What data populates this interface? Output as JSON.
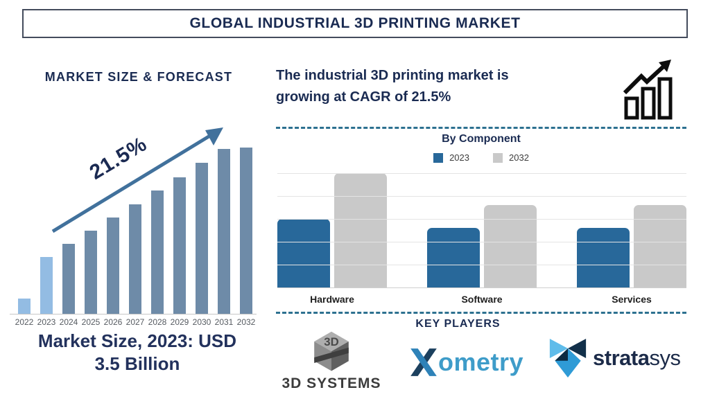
{
  "header": {
    "title": "GLOBAL INDUSTRIAL 3D PRINTING MARKET"
  },
  "forecast": {
    "heading": "MARKET SIZE & FORECAST",
    "growth_annotation": "21.5%",
    "caption_line1": "Market Size, 2023: USD",
    "caption_line2": "3.5 Billion"
  },
  "cagr": {
    "line1": "The industrial 3D printing market is",
    "line2": "growing at CAGR of 21.5%"
  },
  "key_players": {
    "heading": "KEY PLAYERS",
    "players": [
      {
        "name": "3D Systems",
        "mark_text": "3D",
        "wordmark": "3D SYSTEMS"
      },
      {
        "name": "Xometry",
        "wordmark_x": "X",
        "wordmark_rest": "ometry"
      },
      {
        "name": "Stratasys",
        "wordmark_bold": "strata",
        "wordmark_light": "sys"
      }
    ]
  },
  "colors": {
    "navy": "#1a2b52",
    "arrow_blue": "#41719c",
    "forecast_bar_default": "#6e8ba8",
    "forecast_bar_highlight": "#93bce3",
    "component_2023": "#28689a",
    "component_2032": "#c9c9c9",
    "divider_dashed": "#2d7190"
  },
  "chart_data": [
    {
      "type": "bar",
      "title": "MARKET SIZE & FORECAST",
      "categories": [
        "2022",
        "2023",
        "2024",
        "2025",
        "2026",
        "2027",
        "2028",
        "2029",
        "2030",
        "2031",
        "2032"
      ],
      "values": [
        0.9,
        3.4,
        4.2,
        5.0,
        5.8,
        6.6,
        7.4,
        8.2,
        9.1,
        9.9,
        10.0
      ],
      "value_scale": "relative height units, no value axis shown; 2023 = USD 3.5 Billion, CAGR 21.5%",
      "ylim": [
        0,
        10
      ],
      "annotation": "21.5%",
      "highlight_categories": [
        "2022",
        "2023"
      ],
      "bar_color_default": "#6e8ba8",
      "bar_color_highlight": "#93bce3",
      "grid": false,
      "xlabel": "",
      "ylabel": ""
    },
    {
      "type": "grouped_bar",
      "title": "By Component",
      "categories": [
        "Hardware",
        "Software",
        "Services"
      ],
      "series": [
        {
          "name": "2023",
          "color": "#28689a",
          "values": [
            3.0,
            2.6,
            2.6
          ]
        },
        {
          "name": "2032",
          "color": "#c9c9c9",
          "values": [
            5.0,
            3.6,
            3.6
          ]
        }
      ],
      "value_scale": "relative height units, no value axis shown",
      "ylim": [
        0,
        5
      ],
      "grid": true,
      "legend_position": "top",
      "xlabel": "",
      "ylabel": ""
    }
  ]
}
